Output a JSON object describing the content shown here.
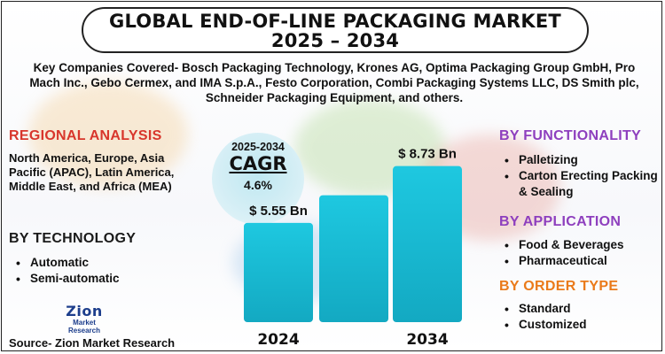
{
  "header": {
    "title_line1": "GLOBAL END-OF-LINE PACKAGING MARKET",
    "title_line2": "2025 – 2034"
  },
  "companies": "Key Companies Covered- Bosch Packaging Technology, Krones AG, Optima Packaging Group GmbH, Pro Mach Inc., Gebo Cermex, and IMA S.p.A., Festo Corporation, Combi Packaging Systems LLC, DS Smith plc, Schneider Packaging Equipment, and others.",
  "regional": {
    "heading": "REGIONAL ANALYSIS",
    "text": "North America, Europe, Asia Pacific (APAC), Latin America, Middle East, and Africa (MEA)"
  },
  "technology": {
    "heading": "BY TECHNOLOGY",
    "items": [
      "Automatic",
      "Semi-automatic"
    ]
  },
  "functionality": {
    "heading": "BY FUNCTIONALITY",
    "items": [
      "Palletizing",
      "Carton Erecting Packing & Sealing"
    ]
  },
  "application": {
    "heading": "BY APPLICATION",
    "items": [
      "Food & Beverages",
      "Pharmaceutical"
    ]
  },
  "order_type": {
    "heading": "BY ORDER TYPE",
    "items": [
      "Standard",
      "Customized"
    ]
  },
  "cagr": {
    "period": "2025-2034",
    "label": "CAGR",
    "value": "4.6%"
  },
  "logo": {
    "name": "Zion",
    "sub": "Market Research"
  },
  "source": "Source- Zion Market Research",
  "colors": {
    "bar": "#1ec8e0",
    "bar_dark": "#13a9c2",
    "regional": "#d8362c",
    "functionality": "#8e3fbe",
    "order_type": "#ea7a1a"
  },
  "chart_data": {
    "type": "bar",
    "title": "",
    "xlabel": "",
    "ylabel": "",
    "categories": [
      "2024",
      "",
      "2034"
    ],
    "values": [
      5.55,
      7.1,
      8.73
    ],
    "data_labels": [
      "$ 5.55 Bn",
      "",
      "$ 8.73 Bn"
    ],
    "ylim": [
      0,
      10
    ],
    "unit": "USD Billion"
  }
}
